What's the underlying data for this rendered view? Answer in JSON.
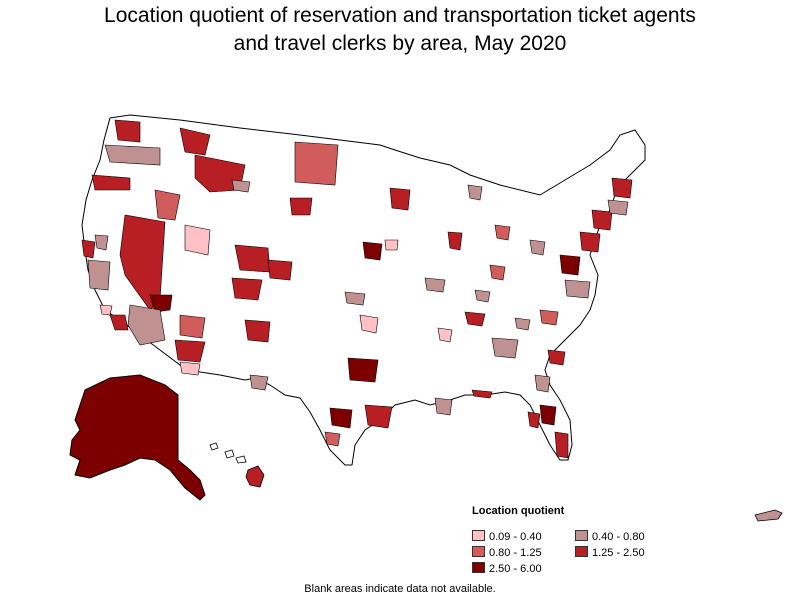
{
  "title_line1": "Location quotient of reservation and transportation ticket agents",
  "title_line2": "and travel clerks by area, May 2020",
  "legend": {
    "title": "Location quotient",
    "items": [
      {
        "label": "0.09 - 0.40",
        "color": "#ffc0c6"
      },
      {
        "label": "0.40 - 0.80",
        "color": "#c09191"
      },
      {
        "label": "0.80 - 1.25",
        "color": "#d05c5c"
      },
      {
        "label": "1.25 - 2.50",
        "color": "#b81f24"
      },
      {
        "label": "2.50 - 6.00",
        "color": "#7d0000"
      }
    ]
  },
  "footnote": "Blank areas indicate data not available.",
  "colors": {
    "background": "#ffffff",
    "border": "#000000",
    "no_data": "#ffffff",
    "q1": "#ffc0c6",
    "q2": "#c09191",
    "q3": "#d05c5c",
    "q4": "#b81f24",
    "q5": "#7d0000"
  }
}
